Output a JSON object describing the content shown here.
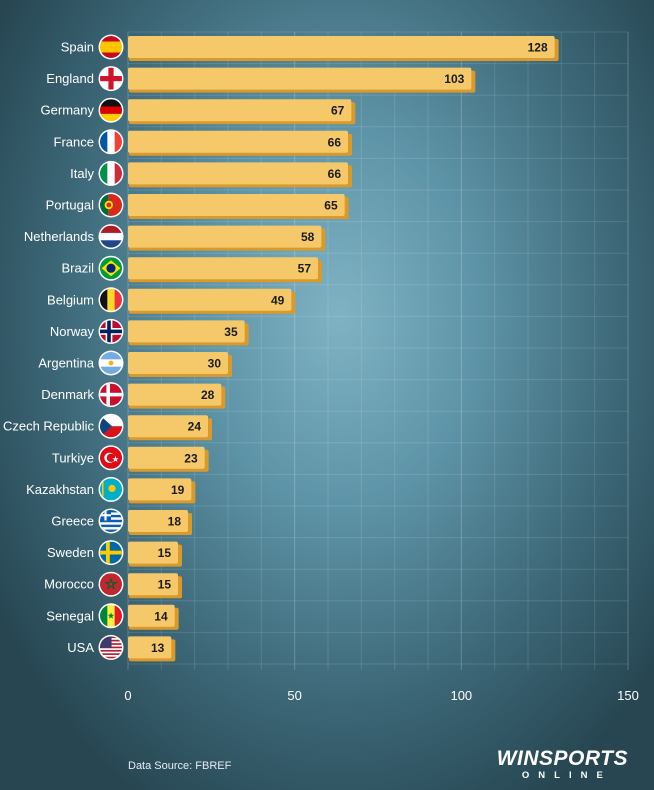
{
  "chart_data": {
    "type": "bar",
    "orientation": "horizontal",
    "categories": [
      "Spain",
      "England",
      "Germany",
      "France",
      "Italy",
      "Portugal",
      "Netherlands",
      "Brazil",
      "Belgium",
      "Norway",
      "Argentina",
      "Denmark",
      "Czech Republic",
      "Turkiye",
      "Kazakhstan",
      "Greece",
      "Sweden",
      "Morocco",
      "Senegal",
      "USA"
    ],
    "values": [
      128,
      103,
      67,
      66,
      66,
      65,
      58,
      57,
      49,
      35,
      30,
      28,
      24,
      23,
      19,
      18,
      15,
      15,
      14,
      13
    ],
    "xlim": [
      0,
      150
    ],
    "xticks": [
      0,
      50,
      100,
      150
    ],
    "grid": true,
    "bar_color": "#f5c96a",
    "bar_shadow_color": "#d99a2b",
    "flags": [
      "spain-flag-icon",
      "england-flag-icon",
      "germany-flag-icon",
      "france-flag-icon",
      "italy-flag-icon",
      "portugal-flag-icon",
      "netherlands-flag-icon",
      "brazil-flag-icon",
      "belgium-flag-icon",
      "norway-flag-icon",
      "argentina-flag-icon",
      "denmark-flag-icon",
      "czech-republic-flag-icon",
      "turkiye-flag-icon",
      "kazakhstan-flag-icon",
      "greece-flag-icon",
      "sweden-flag-icon",
      "morocco-flag-icon",
      "senegal-flag-icon",
      "usa-flag-icon"
    ]
  },
  "footer": {
    "source": "Data Source: FBREF",
    "brand_main": "WINSPORTS",
    "brand_sub": "ONLINE"
  }
}
